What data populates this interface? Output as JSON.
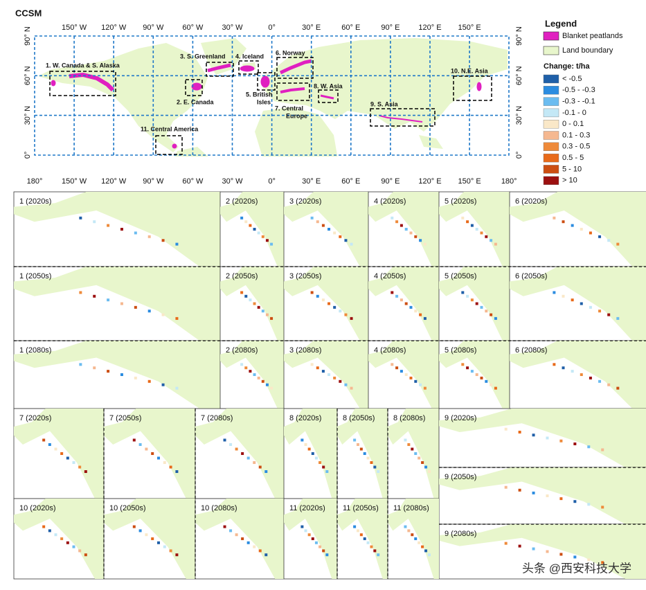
{
  "title": "CCSM",
  "map": {
    "lon_top": [
      "150° W",
      "120° W",
      "90° W",
      "60° W",
      "30° W",
      "0°",
      "30° E",
      "60° E",
      "90° E",
      "120° E",
      "150° E"
    ],
    "lon_bottom": [
      "180°",
      "150° W",
      "120° W",
      "90° W",
      "60° W",
      "30° W",
      "0°",
      "30° E",
      "60° E",
      "90° E",
      "120° E",
      "150° E",
      "180°"
    ],
    "lat": [
      "90° N",
      "60° N",
      "30° N",
      "0°"
    ],
    "regions": [
      {
        "lines": [
          "1. W. Canada & S. Alaska"
        ]
      },
      {
        "lines": [
          "2. E. Canada"
        ]
      },
      {
        "lines": [
          "3. S. Greenland"
        ]
      },
      {
        "lines": [
          "4. Iceland"
        ]
      },
      {
        "lines": [
          "5. British",
          "Isles"
        ]
      },
      {
        "lines": [
          "6. Norway"
        ]
      },
      {
        "lines": [
          "7. Central",
          "Europe"
        ]
      },
      {
        "lines": [
          "8. W. Asia"
        ]
      },
      {
        "lines": [
          "9. S. Asia"
        ]
      },
      {
        "lines": [
          "10. N.E. Asia"
        ]
      },
      {
        "lines": [
          "11. Central America"
        ]
      }
    ]
  },
  "legend": {
    "title": "Legend",
    "items": [
      {
        "label": "Blanket peatlands",
        "color": "#e020c0"
      },
      {
        "label": "Land boundary",
        "color": "#e8f6cc"
      }
    ],
    "change_title": "Change: t/ha",
    "classes": [
      {
        "label": "< -0.5",
        "color": "#1f5fa8"
      },
      {
        "label": "-0.5 - -0.3",
        "color": "#2b8ce0"
      },
      {
        "label": "-0.3 - -0.1",
        "color": "#6bbcf0"
      },
      {
        "label": "-0.1 - 0",
        "color": "#c4e8f6"
      },
      {
        "label": "0 - 0.1",
        "color": "#fae8c8"
      },
      {
        "label": "0.1 - 0.3",
        "color": "#f5b890"
      },
      {
        "label": "0.3 - 0.5",
        "color": "#ee8a3a"
      },
      {
        "label": "0.5 - 5",
        "color": "#e86a1a"
      },
      {
        "label": "5 - 10",
        "color": "#cc4e12"
      },
      {
        "label": "> 10",
        "color": "#9c1010"
      }
    ]
  },
  "panels": [
    "1 (2020s)",
    "2 (2020s)",
    "3 (2020s)",
    "4 (2020s)",
    "5 (2020s)",
    "6 (2020s)",
    "1 (2050s)",
    "2 (2050s)",
    "3 (2050s)",
    "4 (2050s)",
    "5 (2050s)",
    "6 (2050s)",
    "1 (2080s)",
    "2 (2080s)",
    "3 (2080s)",
    "4 (2080s)",
    "5 (2080s)",
    "6 (2080s)",
    "7 (2020s)",
    "7 (2050s)",
    "7 (2080s)",
    "8 (2020s)",
    "8 (2050s)",
    "8 (2080s)",
    "9 (2020s)",
    "9 (2050s)",
    "9 (2080s)",
    "10 (2020s)",
    "10 (2050s)",
    "10 (2080s)",
    "11 (2020s)",
    "11 (2050s)",
    "11 (2080s)"
  ],
  "watermark": "头条 @西安科技大学"
}
